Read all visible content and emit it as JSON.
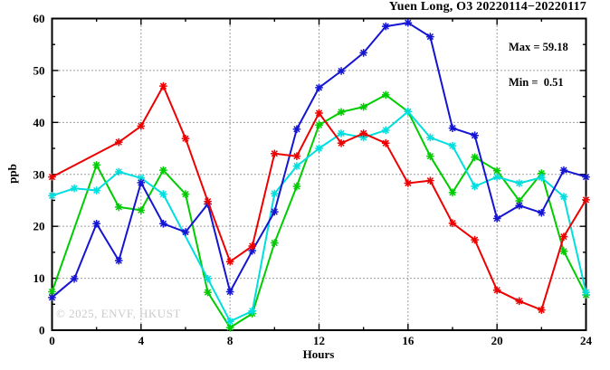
{
  "chart": {
    "title": "Yuen Long, O3 20220114−20220117",
    "stats": {
      "max_label": "Max = 59.18",
      "min_label": "Min =  0.51"
    },
    "ylabel": "ppb",
    "xlabel": "Hours",
    "watermark": "© 2025, ENVF, HKUST"
  },
  "chart_data": {
    "type": "line",
    "title": "Yuen Long, O3 20220114−20220117",
    "xlabel": "Hours",
    "ylabel": "ppb",
    "xlim": [
      0,
      24
    ],
    "ylim": [
      0,
      60
    ],
    "x_major_ticks": [
      0,
      4,
      8,
      12,
      16,
      20,
      24
    ],
    "x_minor_ticks": [
      2,
      6,
      10,
      14,
      18,
      22
    ],
    "y_major_ticks": [
      0,
      10,
      20,
      30,
      40,
      50,
      60
    ],
    "y_minor_ticks": [
      5,
      15,
      25,
      35,
      45,
      55
    ],
    "grid": true,
    "legend_position": "none",
    "marker": "asterisk",
    "annotations": {
      "max": 59.18,
      "min": 0.51
    },
    "x": [
      0,
      1,
      2,
      3,
      4,
      5,
      6,
      7,
      8,
      9,
      10,
      11,
      12,
      13,
      14,
      15,
      16,
      17,
      18,
      19,
      20,
      21,
      22,
      23,
      24
    ],
    "series": [
      {
        "name": "series-green",
        "color": "#00cc00",
        "values": [
          7.4,
          null,
          31.8,
          23.7,
          23.1,
          30.8,
          26.2,
          7.3,
          0.51,
          3.2,
          16.8,
          27.7,
          39.5,
          42.0,
          43.0,
          45.3,
          42.1,
          33.5,
          26.5,
          33.3,
          30.7,
          24.9,
          30.2,
          15.2,
          6.8
        ]
      },
      {
        "name": "series-cyan",
        "color": "#00dede",
        "values": [
          25.9,
          27.3,
          26.9,
          30.5,
          29.3,
          26.2,
          null,
          9.9,
          1.7,
          3.7,
          26.3,
          31.6,
          35.0,
          37.9,
          37.1,
          38.5,
          42.1,
          37.1,
          35.5,
          27.7,
          29.5,
          28.3,
          29.4,
          25.7,
          7.3
        ]
      },
      {
        "name": "series-blue",
        "color": "#1414d2",
        "values": [
          6.3,
          9.9,
          20.5,
          13.4,
          28.4,
          20.5,
          18.9,
          24.3,
          7.4,
          15.3,
          22.8,
          38.7,
          46.7,
          49.9,
          53.4,
          58.5,
          59.18,
          56.5,
          38.9,
          37.5,
          21.5,
          24.0,
          22.6,
          30.8,
          29.5
        ]
      },
      {
        "name": "series-red",
        "color": "#ee0000",
        "values": [
          29.5,
          null,
          null,
          36.2,
          39.3,
          47.0,
          36.9,
          24.8,
          13.2,
          16.2,
          34.0,
          33.5,
          41.8,
          36.0,
          37.9,
          36.0,
          28.3,
          28.8,
          20.6,
          17.4,
          7.7,
          5.6,
          3.9,
          18.0,
          25.1
        ]
      }
    ]
  }
}
